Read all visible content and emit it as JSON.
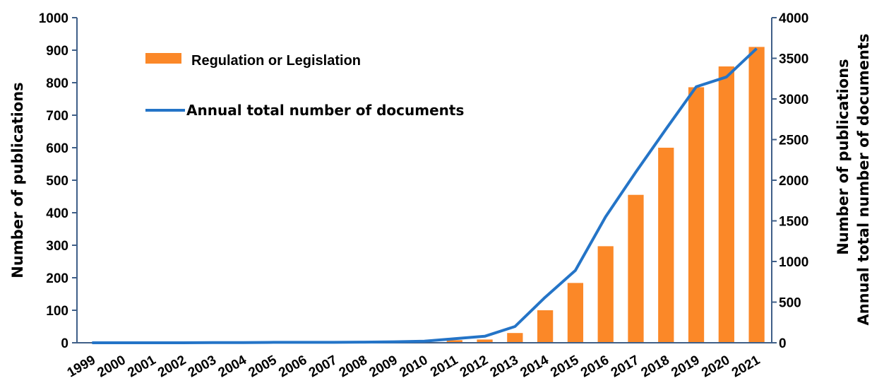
{
  "chart_data": {
    "type": "bar",
    "categories": [
      "1999",
      "2000",
      "2001",
      "2002",
      "2003",
      "2004",
      "2005",
      "2006",
      "2007",
      "2008",
      "2009",
      "2010",
      "2011",
      "2012",
      "2013",
      "2014",
      "2015",
      "2016",
      "2017",
      "2018",
      "2019",
      "2020",
      "2021"
    ],
    "series": [
      {
        "name": "Regulation or Legislation",
        "type": "bar",
        "axis": "left",
        "color": "#fb8828",
        "values": [
          0,
          0,
          0,
          0,
          0,
          0,
          1,
          1,
          1,
          1,
          2,
          2,
          8,
          10,
          30,
          100,
          184,
          297,
          455,
          600,
          786,
          850,
          910
        ]
      },
      {
        "name": "Annual total number of documents",
        "type": "line",
        "axis": "right",
        "color": "#2474c7",
        "values": [
          0,
          0,
          0,
          0,
          2,
          2,
          5,
          5,
          5,
          8,
          12,
          20,
          50,
          80,
          200,
          560,
          890,
          1550,
          2100,
          2630,
          3150,
          3270,
          3620
        ]
      }
    ],
    "ylabel": "Number of publications",
    "y2label": [
      "Number of publications",
      "Annual total number of documents"
    ],
    "ylim": [
      0,
      1000
    ],
    "y2lim": [
      0,
      4000
    ],
    "yticks": [
      "0",
      "100",
      "200",
      "300",
      "400",
      "500",
      "600",
      "700",
      "800",
      "900",
      "1000"
    ],
    "y2ticks": [
      "0",
      "500",
      "1000",
      "1500",
      "2000",
      "2500",
      "3000",
      "3500",
      "4000"
    ],
    "legend": "top-left inside"
  }
}
